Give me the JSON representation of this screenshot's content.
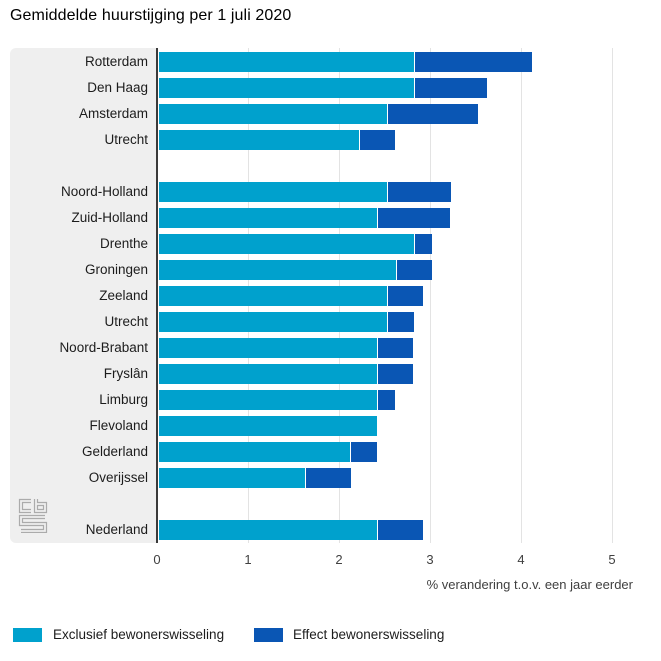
{
  "title": "Gemiddelde huurstijging per 1 juli 2020",
  "chart_data": {
    "type": "bar",
    "orientation": "horizontal",
    "stacked": true,
    "title": "Gemiddelde huurstijging per 1 juli 2020",
    "categories": [
      "Rotterdam",
      "Den Haag",
      "Amsterdam",
      "Utrecht",
      "Noord-Holland",
      "Zuid-Holland",
      "Drenthe",
      "Groningen",
      "Zeeland",
      "Utrecht",
      "Noord-Brabant",
      "Fryslân",
      "Limburg",
      "Flevoland",
      "Gelderland",
      "Overijssel",
      "Nederland"
    ],
    "group_gap_after": [
      3,
      15
    ],
    "series": [
      {
        "name": "Exclusief bewonerswisseling",
        "color": "#00a1cd",
        "values": [
          2.8,
          2.8,
          2.5,
          2.2,
          2.5,
          2.4,
          2.8,
          2.6,
          2.5,
          2.5,
          2.4,
          2.4,
          2.4,
          2.4,
          2.1,
          1.6,
          2.4
        ]
      },
      {
        "name": "Effect bewonerswisseling",
        "color": "#0a56b4",
        "values": [
          1.3,
          0.8,
          1.0,
          0.4,
          0.7,
          0.8,
          0.2,
          0.4,
          0.4,
          0.3,
          0.4,
          0.4,
          0.2,
          0.0,
          0.3,
          0.5,
          0.5
        ]
      }
    ],
    "totals": [
      4.1,
      3.6,
      3.5,
      2.6,
      3.2,
      3.2,
      3.0,
      3.0,
      2.9,
      2.8,
      2.8,
      2.8,
      2.6,
      2.4,
      2.4,
      2.1,
      2.9
    ],
    "xlabel": "% verandering t.o.v. een jaar eerder",
    "xticks": [
      "0",
      "1",
      "2",
      "3",
      "4",
      "5"
    ],
    "xlim": [
      0,
      5.4
    ],
    "grid": true,
    "legend_position": "bottom"
  },
  "colors": {
    "label_panel": "#efefef",
    "axis_line": "#3a3a3a",
    "gridline": "#e3e3e3",
    "logo_grey": "#a9a9a9"
  },
  "logo": {
    "name": "cbs-logo"
  }
}
